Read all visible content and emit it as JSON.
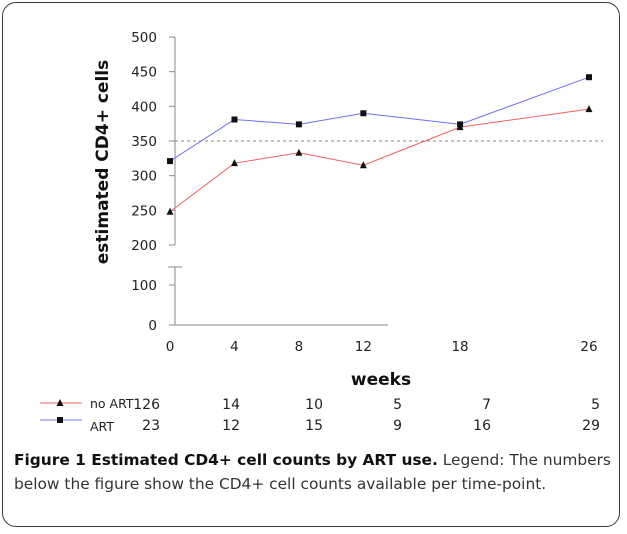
{
  "chart_data": {
    "type": "line",
    "xlabel": "weeks",
    "ylabel": "estimated CD4+ cells",
    "x": [
      0,
      4,
      8,
      12,
      18,
      26
    ],
    "x_ticks": [
      "0",
      "4",
      "8",
      "12",
      "18",
      "26"
    ],
    "y_ticks": [
      "0",
      "100",
      "200",
      "250",
      "300",
      "350",
      "400",
      "450",
      "500"
    ],
    "ylim_upper": [
      200,
      500
    ],
    "ylim_lower": [
      0,
      130
    ],
    "axis_break": true,
    "reference_line": 350,
    "series": [
      {
        "name": "no ART",
        "values": [
          248,
          318,
          333,
          315,
          370,
          396
        ],
        "color": "#f06060",
        "marker": "triangle",
        "counts": [
          "126",
          "14",
          "10",
          "5",
          "7",
          "5"
        ]
      },
      {
        "name": "ART",
        "values": [
          321,
          381,
          374,
          390,
          374,
          442
        ],
        "color": "#7070ee",
        "marker": "square",
        "counts": [
          "23",
          "12",
          "15",
          "9",
          "16",
          "29"
        ]
      }
    ]
  },
  "caption": {
    "lead": "Figure 1 Estimated CD4+ cell counts by ART use.",
    "text": " Legend: The numbers below the figure show the CD4+ cell counts available per time-point."
  }
}
